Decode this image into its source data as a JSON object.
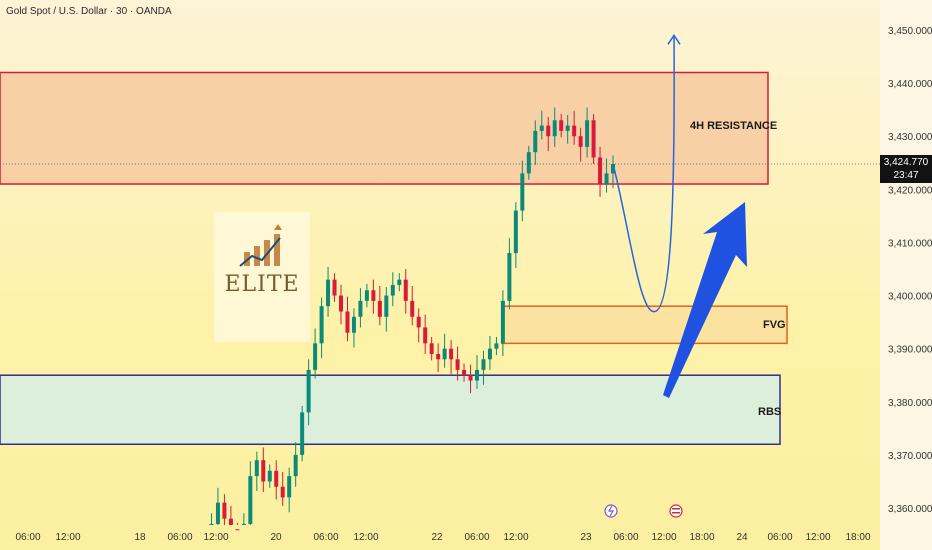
{
  "header": {
    "title": "Gold Spot / U.S. Dollar · 30 · OANDA"
  },
  "chart_data": {
    "type": "candlestick",
    "title": "Gold Spot / U.S. Dollar · 30 · OANDA",
    "ylim": [
      3355,
      3455
    ],
    "y_ticks": [
      3360,
      3370,
      3380,
      3390,
      3400,
      3410,
      3420,
      3430,
      3440,
      3450
    ],
    "y_tick_labels": [
      "3,360.000",
      "3,370.000",
      "3,380.000",
      "3,390.000",
      "3,400.000",
      "3,410.000",
      "3,420.000",
      "3,430.000",
      "3,440.000",
      "3,450.000"
    ],
    "x_tick_labels": [
      "06:00",
      "12:00",
      "18",
      "06:00",
      "12:00",
      "20",
      "06:00",
      "12:00",
      "22",
      "06:00",
      "12:00",
      "23",
      "06:00",
      "12:00",
      "18:00",
      "24",
      "06:00",
      "12:00",
      "18:00"
    ],
    "last_price": {
      "value": "3,424.770",
      "countdown": "23:47"
    },
    "zones": [
      {
        "label": "4H RESISTANCE",
        "y_low": 3421,
        "y_high": 3442,
        "fill": "#f7c9a0",
        "border": "#d81b3c"
      },
      {
        "label": "FVG",
        "y_low": 3391,
        "y_high": 3398,
        "fill": "#fadf9e",
        "border": "#e0631a"
      },
      {
        "label": "RBS",
        "y_low": 3372,
        "y_high": 3385,
        "fill": "#d6efe4",
        "border": "#3a2b8c"
      }
    ],
    "price_path": [
      3356,
      3357,
      3361,
      3358,
      3356,
      3355,
      3357,
      3366,
      3369,
      3365,
      3367,
      3364,
      3362,
      3366,
      3370,
      3378,
      3386,
      3391,
      3398,
      3403,
      3400,
      3397,
      3393,
      3396,
      3399,
      3401,
      3399,
      3396,
      3400,
      3402,
      3403,
      3399,
      3396,
      3394,
      3391,
      3389,
      3388,
      3390,
      3388,
      3386,
      3385,
      3384,
      3386,
      3388,
      3390,
      3391,
      3399,
      3408,
      3416,
      3423,
      3427,
      3431,
      3432,
      3430,
      3433,
      3431,
      3432,
      3430,
      3428,
      3433,
      3426,
      3421,
      3423,
      3424.77
    ],
    "projection": {
      "from": 3424,
      "low": 3397,
      "target": 3449
    },
    "colors": {
      "up": "#0b8a7a",
      "down": "#d81b3c",
      "projection": "#2466e0",
      "arrow": "#1f52e0"
    },
    "logo_text": "ELITE"
  }
}
